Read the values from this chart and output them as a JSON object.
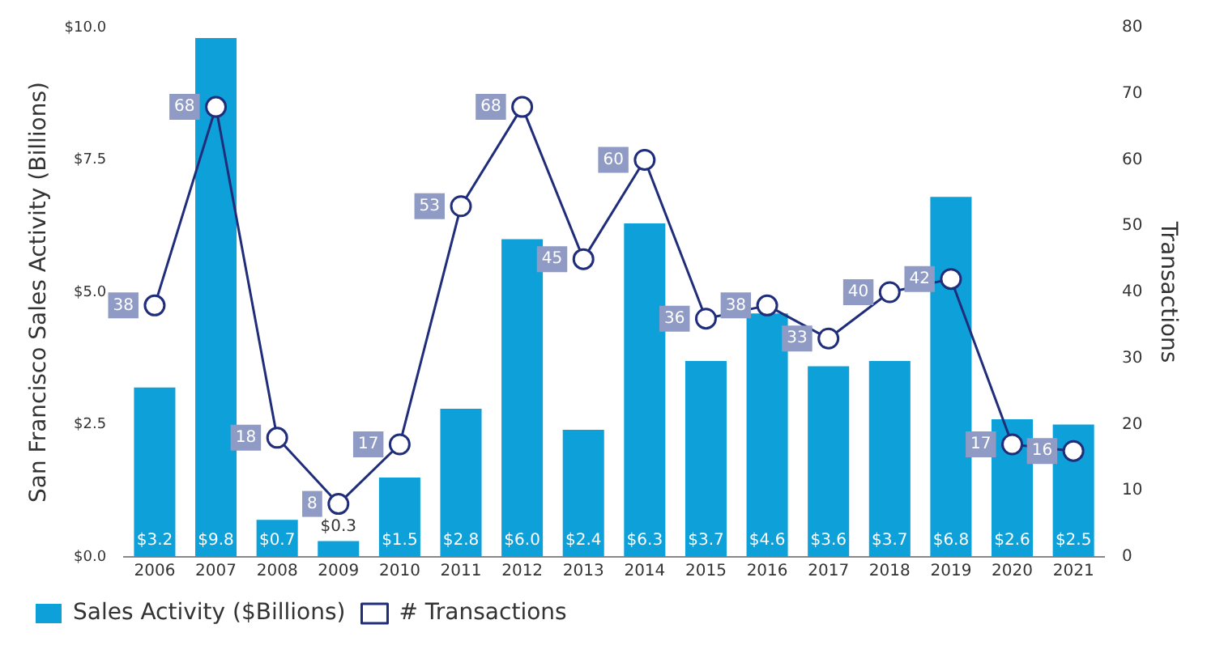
{
  "chart_data": {
    "type": "bar",
    "ylabel": "San Francisco Sales Activity (Billions)",
    "y2label": "Transactions",
    "categories": [
      "2006",
      "2007",
      "2008",
      "2009",
      "2010",
      "2011",
      "2012",
      "2013",
      "2014",
      "2015",
      "2016",
      "2017",
      "2018",
      "2019",
      "2020",
      "2021"
    ],
    "series": [
      {
        "name": "Sales Activity ($Billions)",
        "color": "#0ea0d8",
        "values": [
          3.2,
          9.8,
          0.7,
          0.3,
          1.5,
          2.8,
          6.0,
          2.4,
          6.3,
          3.7,
          4.6,
          3.6,
          3.7,
          6.8,
          2.6,
          2.5
        ],
        "value_labels": [
          "$3.2",
          "$9.8",
          "$0.7",
          "$0.3",
          "$1.5",
          "$2.8",
          "$6.0",
          "$2.4",
          "$6.3",
          "$3.7",
          "$4.6",
          "$3.6",
          "$3.7",
          "$6.8",
          "$2.6",
          "$2.5"
        ]
      },
      {
        "name": "# Transactions",
        "type": "line",
        "axis": "y2",
        "color": "#1f2d7a",
        "marker": "circle",
        "values": [
          38,
          68,
          18,
          8,
          17,
          53,
          68,
          45,
          60,
          36,
          38,
          33,
          40,
          42,
          17,
          16
        ],
        "value_labels": [
          "38",
          "68",
          "18",
          "8",
          "17",
          "53",
          "68",
          "45",
          "60",
          "36",
          "38",
          "33",
          "40",
          "42",
          "17",
          "16"
        ]
      }
    ],
    "ylim": [
      0,
      10
    ],
    "yticks": [
      {
        "value": 0,
        "label": "$0.0"
      },
      {
        "value": 2.5,
        "label": "$2.5"
      },
      {
        "value": 5,
        "label": "$5.0"
      },
      {
        "value": 7.5,
        "label": "$7.5"
      },
      {
        "value": 10,
        "label": "$10.0"
      }
    ],
    "y2lim": [
      0,
      80
    ],
    "y2ticks": [
      0,
      10,
      20,
      30,
      40,
      50,
      60,
      70,
      80
    ],
    "grid": false,
    "legend": "bottom"
  }
}
